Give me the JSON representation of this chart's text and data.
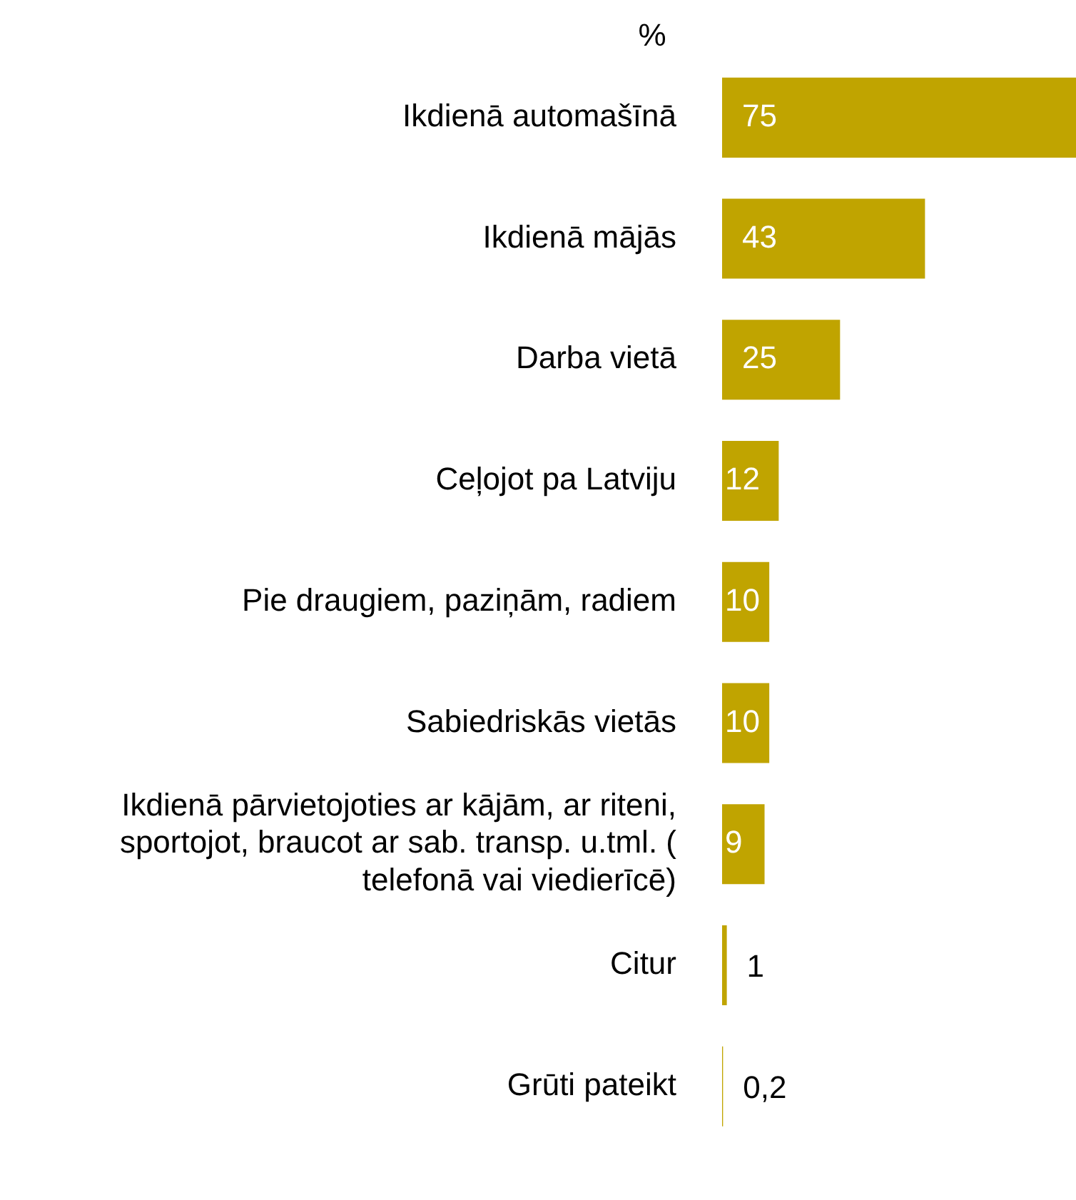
{
  "chart_data": {
    "type": "bar",
    "orientation": "horizontal",
    "title": "%",
    "categories": [
      "Ikdienā automašīnā",
      "Ikdienā mājās",
      "Darba vietā",
      "Ceļojot pa Latviju",
      "Pie draugiem, paziņām, radiem",
      "Sabiedriskās vietās",
      "Ikdienā pārvietojoties ar kājām, ar riteni, sportojot, braucot ar sab. transp. u.tml. ( telefonā vai viedierīcē)",
      "Citur",
      "Grūti pateikt"
    ],
    "values": [
      75,
      43,
      25,
      12,
      10,
      10,
      9,
      1,
      0.2
    ],
    "value_labels": [
      "75",
      "43",
      "25",
      "12",
      "10",
      "10",
      "9",
      "1",
      "0,2"
    ],
    "color": "#c0a400"
  }
}
